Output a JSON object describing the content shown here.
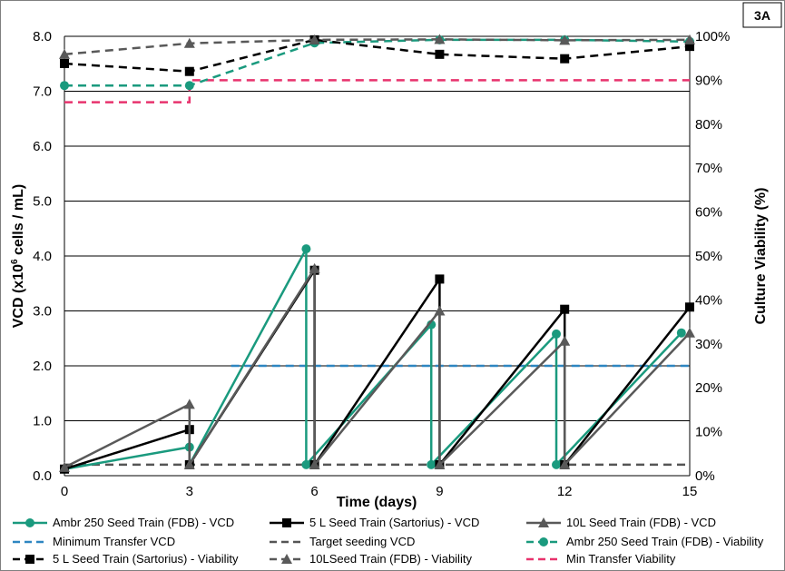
{
  "chart_data": {
    "type": "line",
    "panel_label": "3A",
    "xlabel": "Time (days)",
    "ylabel_left": "VCD (x10",
    "ylabel_left_sup": "6",
    "ylabel_left_rest": " cells / mL)",
    "ylabel_right": "Culture Viability (%)",
    "xlim": [
      0,
      15
    ],
    "ylim_left": [
      0,
      8
    ],
    "ylim_right": [
      0,
      100
    ],
    "x_ticks": [
      "0",
      "3",
      "6",
      "9",
      "12",
      "15"
    ],
    "y_left_ticks": [
      "0.0",
      "1.0",
      "2.0",
      "3.0",
      "4.0",
      "5.0",
      "6.0",
      "7.0",
      "8.0"
    ],
    "y_right_ticks": [
      "0%",
      "10%",
      "20%",
      "30%",
      "40%",
      "50%",
      "60%",
      "70%",
      "80%",
      "90%",
      "100%"
    ],
    "grid": "horizontal",
    "legend_position": "bottom",
    "series": [
      {
        "name": "Ambr 250 Seed Train (FDB) - VCD",
        "axis": "left",
        "color": "#1a9a7e",
        "dash": "solid",
        "marker": "circle",
        "x": [
          0,
          3,
          3,
          5.8,
          5.8,
          8.8,
          8.8,
          11.8,
          11.8,
          14.8
        ],
        "y": [
          0.12,
          0.52,
          0.2,
          4.13,
          0.2,
          2.75,
          0.2,
          2.58,
          0.2,
          2.6
        ]
      },
      {
        "name": "5 L Seed Train (Sartorius) - VCD",
        "axis": "left",
        "color": "#000000",
        "dash": "solid",
        "marker": "square",
        "x": [
          0,
          3,
          3,
          6,
          6,
          9,
          9,
          12,
          12,
          15
        ],
        "y": [
          0.12,
          0.84,
          0.2,
          3.74,
          0.2,
          3.58,
          0.2,
          3.03,
          0.2,
          3.07
        ]
      },
      {
        "name": "10L Seed Train (FDB) - VCD",
        "axis": "left",
        "color": "#595959",
        "dash": "solid",
        "marker": "triangle",
        "x": [
          0,
          3,
          3,
          6,
          6,
          9,
          9,
          12,
          12,
          15
        ],
        "y": [
          0.15,
          1.3,
          0.2,
          3.77,
          0.2,
          3.0,
          0.2,
          2.45,
          0.2,
          2.6
        ]
      },
      {
        "name": "Minimum Transfer VCD",
        "axis": "left",
        "color": "#2e86c1",
        "dash": "dashed",
        "marker": "none",
        "x": [
          4,
          15
        ],
        "y": [
          2.0,
          2.0
        ]
      },
      {
        "name": "Target seeding VCD",
        "axis": "left",
        "color": "#555555",
        "dash": "dashed",
        "marker": "none",
        "x": [
          0,
          15
        ],
        "y": [
          0.2,
          0.2
        ]
      },
      {
        "name": "Ambr 250 Seed Train (FDB) - Viability",
        "axis": "right",
        "color": "#1a9a7e",
        "dash": "dashed",
        "marker": "circle",
        "x": [
          0,
          3,
          6,
          9,
          12,
          15
        ],
        "y": [
          88.8,
          88.8,
          98.5,
          99.2,
          99.2,
          98.8
        ]
      },
      {
        "name": "5 L Seed Train (Sartorius) - Viability",
        "axis": "right",
        "color": "#000000",
        "dash": "dashed",
        "marker": "square",
        "x": [
          0,
          3,
          6,
          9,
          12,
          15
        ],
        "y": [
          93.8,
          92.0,
          99.2,
          95.9,
          94.9,
          97.7
        ]
      },
      {
        "name": "10LSeed Train (FDB) - Viability",
        "axis": "right",
        "color": "#595959",
        "dash": "dashed",
        "marker": "triangle",
        "x": [
          0,
          3,
          6,
          9,
          12,
          15
        ],
        "y": [
          95.9,
          98.4,
          99.2,
          99.3,
          99.1,
          99.2
        ]
      },
      {
        "name": "Min Transfer Viability",
        "axis": "right",
        "color": "#e8336d",
        "dash": "dashed",
        "marker": "none",
        "x": [
          0,
          3,
          3,
          15
        ],
        "y": [
          85,
          85,
          90,
          90
        ]
      }
    ]
  }
}
